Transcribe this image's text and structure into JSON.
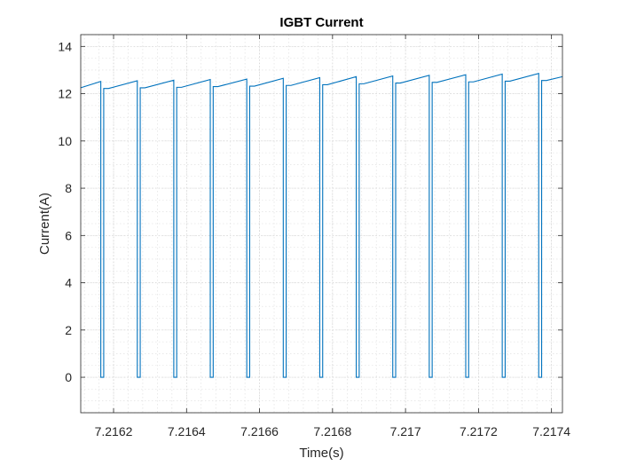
{
  "chart_data": {
    "type": "line",
    "title": "IGBT Current",
    "xlabel": "Time(s)",
    "ylabel": "Current(A)",
    "xlim": [
      7.21611,
      7.21743
    ],
    "ylim": [
      -1.5,
      14.5
    ],
    "xticks": [
      7.2162,
      7.2164,
      7.2166,
      7.2168,
      7.217,
      7.2172,
      7.2174
    ],
    "xtick_labels": [
      "7.2162",
      "7.2164",
      "7.2166",
      "7.2168",
      "7.217",
      "7.2172",
      "7.2174"
    ],
    "yticks": [
      0,
      2,
      4,
      6,
      8,
      10,
      12,
      14
    ],
    "ytick_labels": [
      "0",
      "2",
      "4",
      "6",
      "8",
      "10",
      "12",
      "14"
    ],
    "grid": true,
    "minor_grid": true,
    "colors": {
      "line": "#0072BD",
      "axes": "#262626"
    },
    "series": [
      {
        "x": [
          7.21611,
          7.216165,
          7.216165,
          7.216173,
          7.216173,
          7.216186,
          7.216265,
          7.216265,
          7.216273,
          7.216273,
          7.216286,
          7.216365,
          7.216365,
          7.216373,
          7.216373,
          7.216386,
          7.216465,
          7.216465,
          7.216473,
          7.216473,
          7.216486,
          7.216565,
          7.216565,
          7.216573,
          7.216573,
          7.216586,
          7.216665,
          7.216665,
          7.216673,
          7.216673,
          7.216686,
          7.216765,
          7.216765,
          7.216773,
          7.216773,
          7.216786,
          7.216865,
          7.216865,
          7.216873,
          7.216873,
          7.216886,
          7.216965,
          7.216965,
          7.216973,
          7.216973,
          7.216986,
          7.217065,
          7.217065,
          7.217073,
          7.217073,
          7.217086,
          7.217165,
          7.217165,
          7.217173,
          7.217173,
          7.217186,
          7.217265,
          7.217265,
          7.217273,
          7.217273,
          7.217286,
          7.217365,
          7.217365,
          7.217373,
          7.217373,
          7.217386,
          7.21743
        ],
        "y": [
          12.25,
          12.52,
          0,
          0,
          12.22,
          12.22,
          12.55,
          0,
          0,
          12.25,
          12.25,
          12.57,
          0,
          0,
          12.27,
          12.27,
          12.6,
          0,
          0,
          12.3,
          12.3,
          12.62,
          0,
          0,
          12.32,
          12.32,
          12.65,
          0,
          0,
          12.35,
          12.35,
          12.68,
          0,
          0,
          12.38,
          12.38,
          12.72,
          0,
          0,
          12.42,
          12.42,
          12.75,
          0,
          0,
          12.45,
          12.45,
          12.78,
          0,
          0,
          12.48,
          12.48,
          12.8,
          0,
          0,
          12.5,
          12.5,
          12.83,
          0,
          0,
          12.53,
          12.53,
          12.86,
          0,
          0,
          12.56,
          12.56,
          12.72
        ]
      }
    ]
  }
}
